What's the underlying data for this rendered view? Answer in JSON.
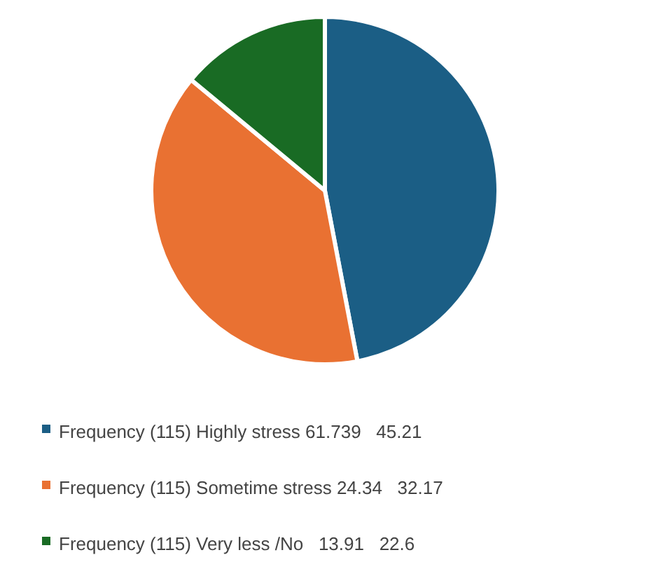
{
  "chart_data": {
    "type": "pie",
    "categories": [
      "Frequency (115) Highly stress 61.739   45.21",
      "Frequency (115) Sometime stress 24.34   32.17",
      "Frequency (115) Very less /No   13.91   22.6"
    ],
    "values": [
      47,
      39,
      14
    ],
    "colors": [
      "#1b5e85",
      "#e97132",
      "#196b24"
    ],
    "legend": "bottom"
  }
}
